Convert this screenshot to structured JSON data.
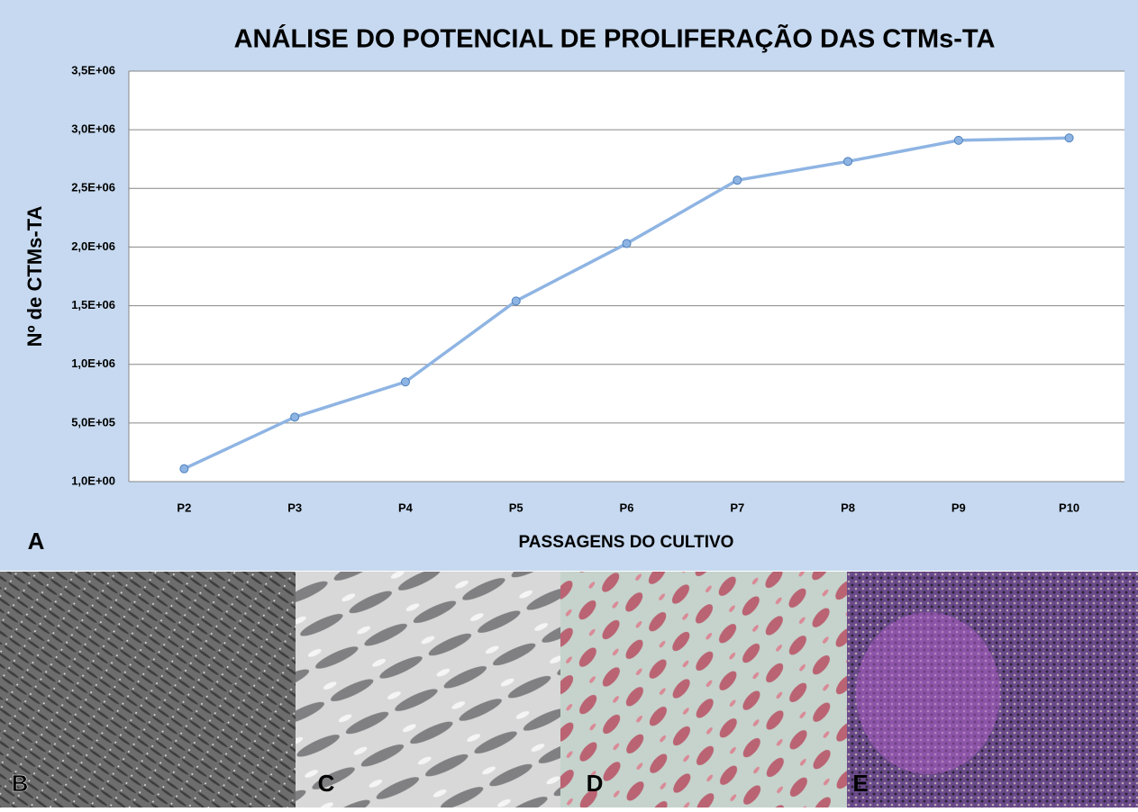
{
  "chart_data": {
    "type": "line",
    "title": "ANÁLISE DO POTENCIAL DE PROLIFERAÇÃO DAS CTMs-TA",
    "x_label": "PASSAGENS DO CULTIVO",
    "y_label": "Nº de CTMs-TA",
    "categories": [
      "P2",
      "P3",
      "P4",
      "P5",
      "P6",
      "P7",
      "P8",
      "P9",
      "P10"
    ],
    "values": [
      110000,
      550000,
      850000,
      1540000,
      2030000,
      2570000,
      2730000,
      2910000,
      2930000
    ],
    "color": "#8eb4e3",
    "ylim": [
      1,
      3500000
    ],
    "yticks": [
      {
        "value": 1,
        "label": "1,0E+00"
      },
      {
        "value": 500000,
        "label": "5,0E+05"
      },
      {
        "value": 1000000,
        "label": "1,0E+06"
      },
      {
        "value": 1500000,
        "label": "1,5E+06"
      },
      {
        "value": 2000000,
        "label": "2,0E+06"
      },
      {
        "value": 2500000,
        "label": "2,5E+06"
      },
      {
        "value": 3000000,
        "label": "3,0E+06"
      },
      {
        "value": 3500000,
        "label": "3,5E+06"
      }
    ],
    "grid": true
  },
  "panel_labels": [
    "A",
    "B",
    "C",
    "D",
    "E"
  ]
}
